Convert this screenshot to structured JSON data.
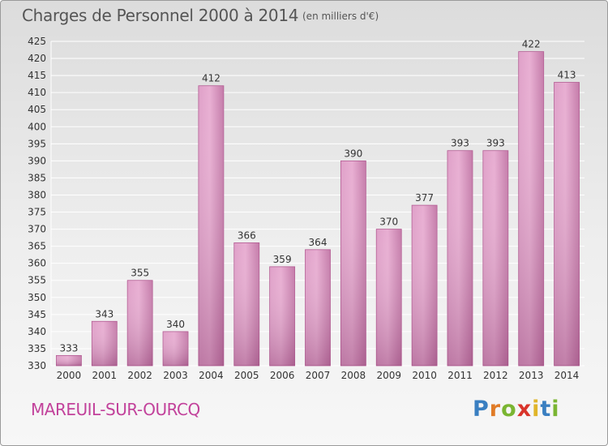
{
  "header": {
    "title": "Charges de Personnel 2000 à 2014",
    "subtitle": "(en milliers d'€)"
  },
  "footer": {
    "town": "MAREUIL-SUR-OURCQ",
    "logo": "Proxiti"
  },
  "colors": {
    "bar": "#c0669e",
    "bar_light": "#e4a7cd",
    "grid": "#ffffff",
    "axis_text": "#333333",
    "town": "#c2429b",
    "logo_letters": [
      "#3a7fc1",
      "#e07b27",
      "#7ab532",
      "#d9342b",
      "#e0b52a",
      "#3a7fc1",
      "#7ab532"
    ]
  },
  "chart_data": {
    "type": "bar",
    "title": "Charges de Personnel 2000 à 2014",
    "subtitle": "(en milliers d'€)",
    "categories": [
      "2000",
      "2001",
      "2002",
      "2003",
      "2004",
      "2005",
      "2006",
      "2007",
      "2008",
      "2009",
      "2010",
      "2011",
      "2012",
      "2013",
      "2014"
    ],
    "values": [
      333,
      343,
      355,
      340,
      412,
      366,
      359,
      364,
      390,
      370,
      377,
      393,
      393,
      422,
      413
    ],
    "ylim": [
      330,
      425
    ],
    "ytick_step": 5,
    "grid": true,
    "legend": "none"
  }
}
